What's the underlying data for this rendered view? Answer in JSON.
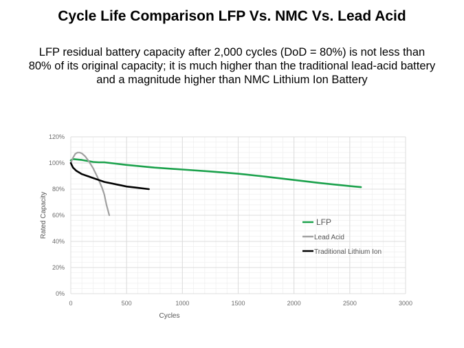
{
  "slide": {
    "title": "Cycle Life Comparison LFP Vs. NMC Vs. Lead Acid",
    "subtitle": "LFP residual battery capacity after 2,000 cycles (DoD = 80%) is not less than 80% of its original capacity; it is much higher than the traditional lead-acid battery and a magnitude higher than NMC Lithium Ion Battery"
  },
  "chart_data": {
    "type": "line",
    "title": "",
    "xlabel": "Cycles",
    "ylabel": "Rated Capacity",
    "xlim": [
      0,
      3000
    ],
    "ylim": [
      0,
      120
    ],
    "xticks": [
      0,
      500,
      1000,
      1500,
      2000,
      2500,
      3000
    ],
    "xtick_labels": [
      "0",
      "500",
      "1000",
      "1500",
      "2000",
      "2500",
      "3000"
    ],
    "yticks": [
      0,
      20,
      40,
      60,
      80,
      100,
      120
    ],
    "ytick_labels": [
      "0%",
      "20%",
      "40%",
      "60%",
      "80%",
      "100%",
      "120%"
    ],
    "grid": true,
    "minor_grid": true,
    "legend_position": "center-right",
    "series": [
      {
        "name": "LFP",
        "color": "#1aa14b",
        "x": [
          0,
          20,
          100,
          200,
          250,
          300,
          500,
          750,
          1000,
          1250,
          1500,
          1750,
          2000,
          2250,
          2500,
          2600
        ],
        "y": [
          102,
          103,
          102.3,
          100.8,
          100.5,
          100.5,
          98.5,
          96.5,
          95,
          93.5,
          91.8,
          89.5,
          87,
          84.5,
          82.3,
          81.5
        ]
      },
      {
        "name": "Lead Acid",
        "color": "#a0a0a0",
        "x": [
          0,
          20,
          40,
          60,
          80,
          100,
          130,
          160,
          200,
          240,
          280,
          300,
          320,
          345
        ],
        "y": [
          100,
          104,
          107,
          108,
          108,
          107.3,
          105,
          101.5,
          96,
          89,
          81,
          76,
          68,
          60
        ]
      },
      {
        "name": "Traditional Lithium Ion",
        "color": "#000000",
        "x": [
          0,
          20,
          50,
          100,
          150,
          200,
          250,
          300,
          400,
          500,
          600,
          700
        ],
        "y": [
          100,
          96.5,
          94,
          91.5,
          90,
          88.5,
          87,
          85.5,
          83.8,
          82,
          81,
          80
        ]
      }
    ]
  }
}
